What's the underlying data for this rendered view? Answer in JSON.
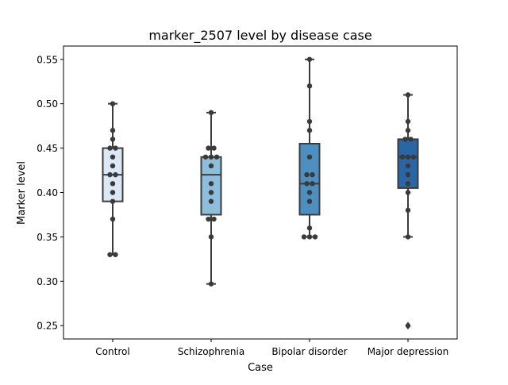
{
  "chart_data": {
    "type": "box",
    "title": "marker_2507 level by disease case",
    "xlabel": "Case",
    "ylabel": "Marker level",
    "ylim": [
      0.235,
      0.565
    ],
    "yticks": [
      0.25,
      0.3,
      0.35,
      0.4,
      0.45,
      0.5,
      0.55
    ],
    "ytick_labels": [
      "0.25",
      "0.30",
      "0.35",
      "0.40",
      "0.45",
      "0.50",
      "0.55"
    ],
    "grid": false,
    "categories": [
      "Control",
      "Schizophrenia",
      "Bipolar disorder",
      "Major depression"
    ],
    "colors": [
      "#dbe9f6",
      "#8dbfdd",
      "#4e8fc1",
      "#2866a5"
    ],
    "edge_color": "#3c3c3c",
    "boxes": [
      {
        "q1": 0.39,
        "median": 0.42,
        "q3": 0.45,
        "whisker_low": 0.33,
        "whisker_high": 0.5,
        "outliers": []
      },
      {
        "q1": 0.375,
        "median": 0.42,
        "q3": 0.44,
        "whisker_low": 0.297,
        "whisker_high": 0.49,
        "outliers": []
      },
      {
        "q1": 0.375,
        "median": 0.41,
        "q3": 0.455,
        "whisker_low": 0.35,
        "whisker_high": 0.55,
        "outliers": []
      },
      {
        "q1": 0.405,
        "median": 0.44,
        "q3": 0.46,
        "whisker_low": 0.35,
        "whisker_high": 0.51,
        "outliers": [
          0.25
        ]
      }
    ],
    "points": [
      [
        0.5,
        0.47,
        0.46,
        0.45,
        0.45,
        0.44,
        0.43,
        0.42,
        0.42,
        0.41,
        0.4,
        0.39,
        0.37,
        0.33,
        0.33
      ],
      [
        0.49,
        0.45,
        0.45,
        0.44,
        0.44,
        0.44,
        0.43,
        0.41,
        0.4,
        0.39,
        0.37,
        0.37,
        0.35,
        0.297
      ],
      [
        0.55,
        0.52,
        0.48,
        0.47,
        0.44,
        0.42,
        0.42,
        0.41,
        0.41,
        0.4,
        0.39,
        0.36,
        0.35,
        0.35,
        0.35
      ],
      [
        0.51,
        0.48,
        0.47,
        0.46,
        0.46,
        0.44,
        0.44,
        0.44,
        0.43,
        0.42,
        0.41,
        0.4,
        0.38,
        0.35,
        0.25
      ]
    ]
  }
}
